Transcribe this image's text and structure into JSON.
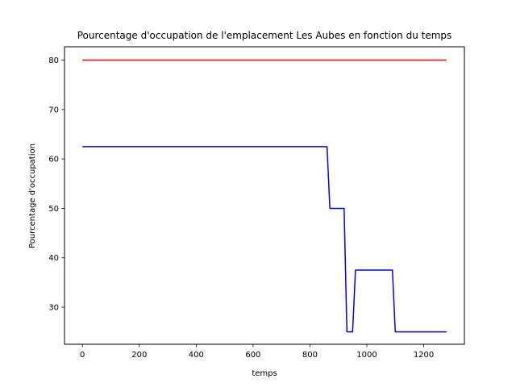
{
  "chart_data": {
    "type": "line",
    "title": "Pourcentage d'occupation de l'emplacement Les Aubes en fonction du temps",
    "xlabel": "temps",
    "ylabel": "Pourcentage d'occupation",
    "xlim": [
      -63,
      1343
    ],
    "ylim": [
      22.5,
      82.7
    ],
    "xticks": [
      0,
      200,
      400,
      600,
      800,
      1000,
      1200
    ],
    "yticks": [
      30,
      40,
      50,
      60,
      70,
      80
    ],
    "grid": false,
    "series": [
      {
        "color": "#ff0000",
        "x": [
          0,
          1280
        ],
        "y": [
          80,
          80
        ]
      },
      {
        "color": "#0000ff",
        "x": [
          0,
          860,
          870,
          920,
          930,
          950,
          960,
          1090,
          1100,
          1280
        ],
        "y": [
          62.5,
          62.5,
          50,
          50,
          25,
          25,
          37.5,
          37.5,
          25,
          25
        ]
      }
    ]
  }
}
